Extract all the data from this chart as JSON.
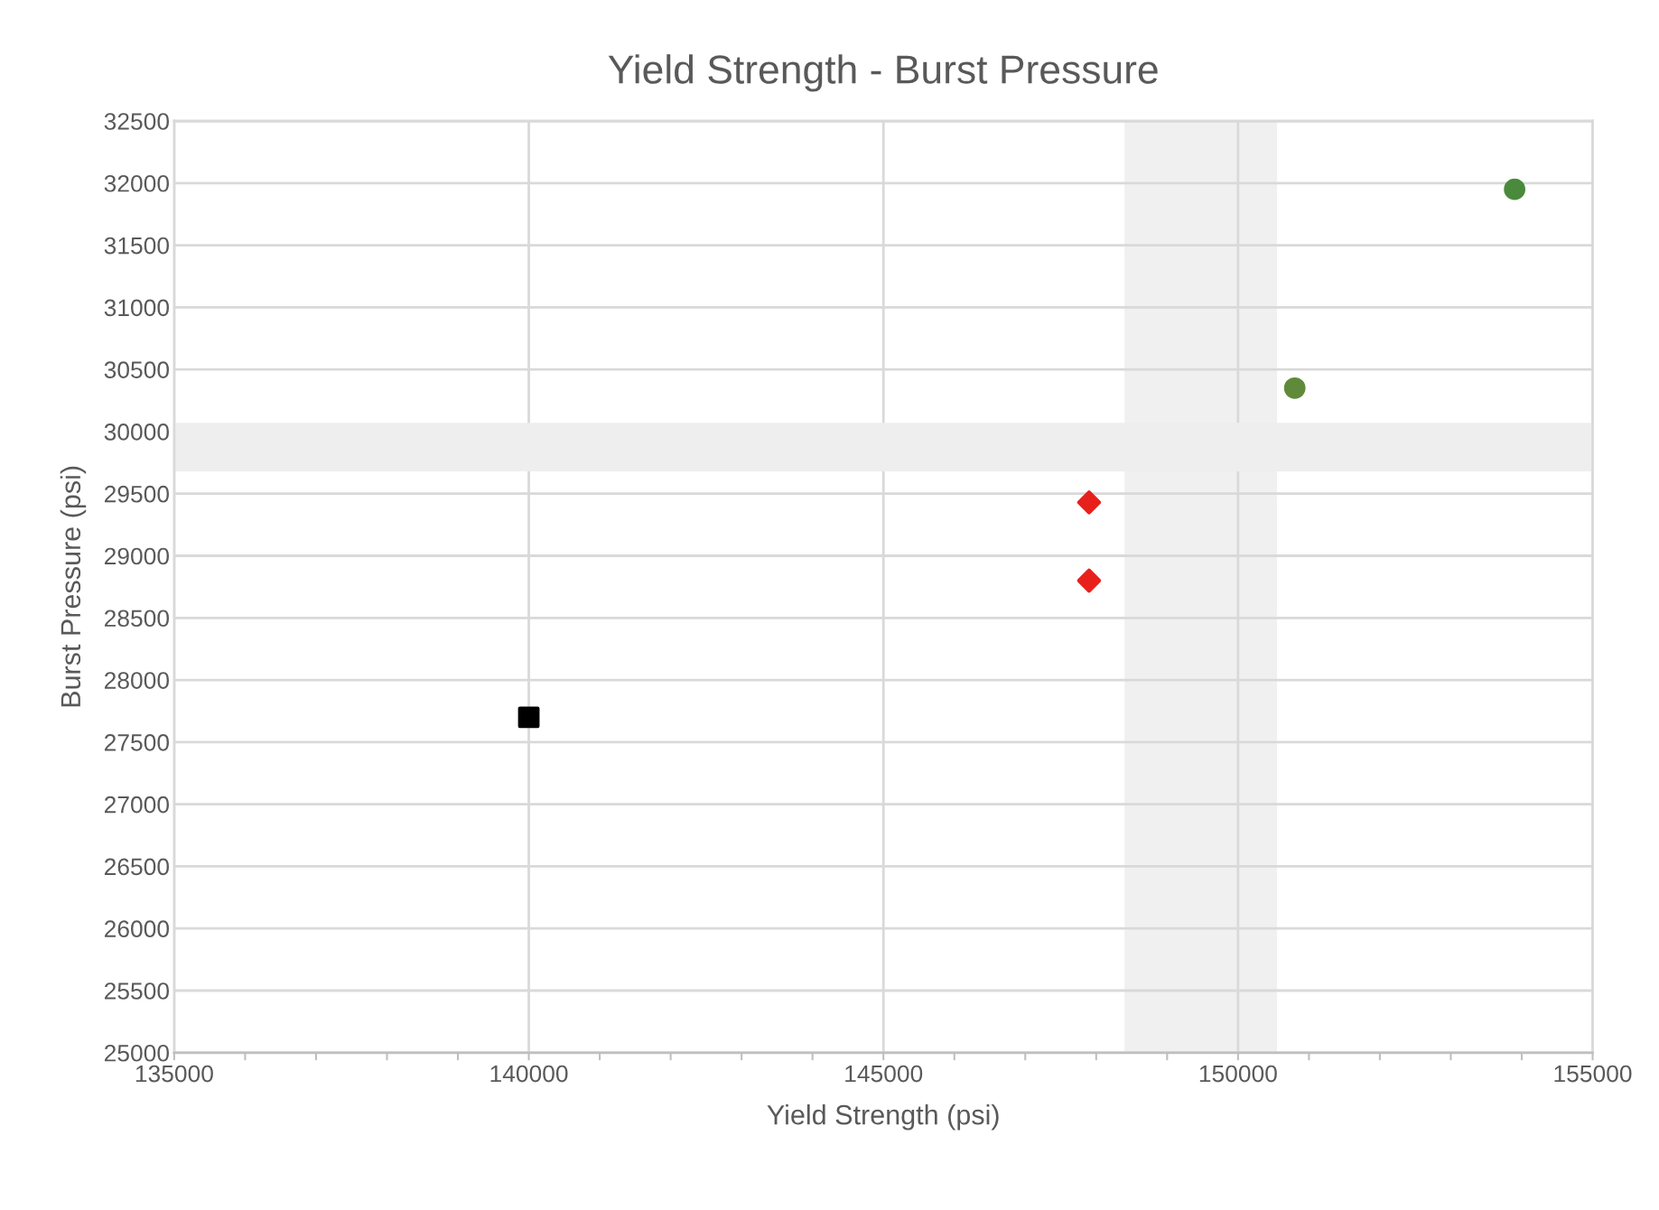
{
  "chart_data": {
    "type": "scatter",
    "title": "Yield Strength - Burst Pressure",
    "xlabel": "Yield Strength (psi)",
    "ylabel": "Burst Pressure (psi)",
    "series": [
      {
        "color": "#4a8a3c",
        "marker": "circle",
        "x": [
          153900
        ],
        "values": [
          31950
        ]
      },
      {
        "color": "#5f8a3a",
        "marker": "circle",
        "x": [
          150800
        ],
        "values": [
          30350
        ]
      },
      {
        "color": "#e8201c",
        "marker": "diamond",
        "x": [
          147900,
          147900
        ],
        "values": [
          29430,
          28800
        ]
      },
      {
        "color": "#000000",
        "marker": "square",
        "x": [
          140000
        ],
        "values": [
          27700
        ]
      }
    ],
    "bands": [
      {
        "axis": "x",
        "from": 148400,
        "to": 150550,
        "color": "#f0f0f0"
      },
      {
        "axis": "y",
        "from": 29680,
        "to": 30070,
        "color": "#eeeeee"
      }
    ],
    "xlim": [
      135000,
      155000
    ],
    "xticks": [
      135000,
      {
        "value": 136000,
        "label": null
      },
      {
        "value": 137000,
        "label": null
      },
      {
        "value": 138000,
        "label": null
      },
      {
        "value": 139000,
        "label": null
      },
      140000,
      {
        "value": 141000,
        "label": null
      },
      {
        "value": 142000,
        "label": null
      },
      {
        "value": 143000,
        "label": null
      },
      {
        "value": 144000,
        "label": null
      },
      145000,
      {
        "value": 146000,
        "label": null
      },
      {
        "value": 147000,
        "label": null
      },
      {
        "value": 148000,
        "label": null
      },
      {
        "value": 149000,
        "label": null
      },
      150000,
      {
        "value": 151000,
        "label": null
      },
      {
        "value": 152000,
        "label": null
      },
      {
        "value": 153000,
        "label": null
      },
      {
        "value": 154000,
        "label": null
      },
      155000
    ],
    "ylim": [
      25000,
      32500
    ],
    "yticks": [
      25000,
      25500,
      26000,
      26500,
      27000,
      27500,
      28000,
      28500,
      29000,
      29500,
      30000,
      30500,
      31000,
      31500,
      32000,
      32500
    ],
    "grid": true,
    "legend": false
  }
}
